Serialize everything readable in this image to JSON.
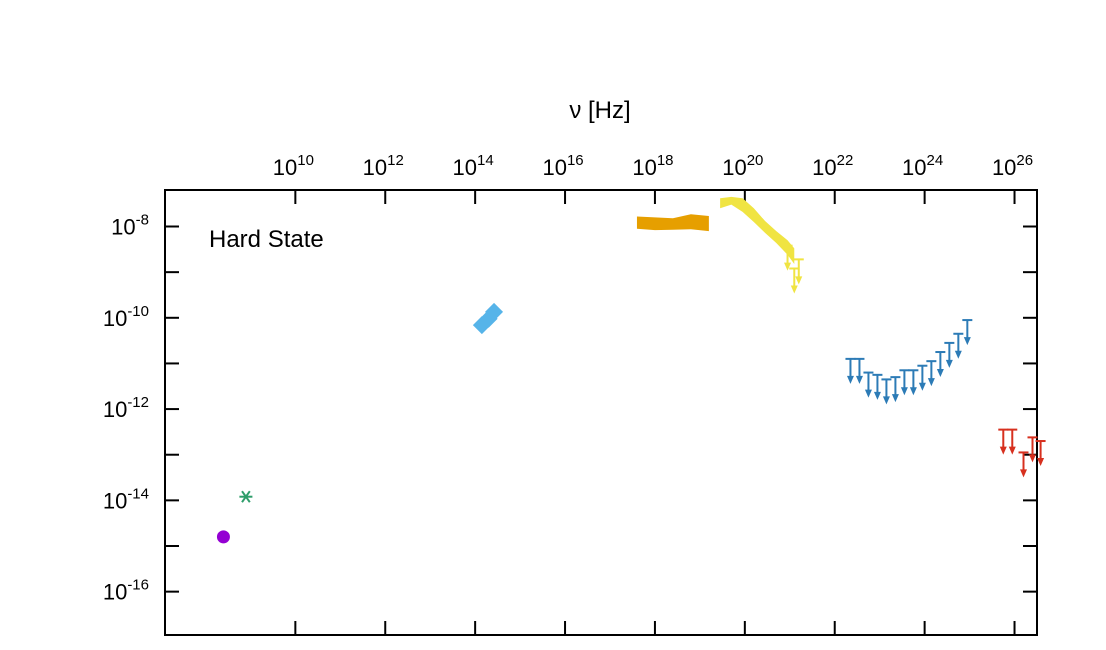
{
  "chart_data": {
    "type": "scatter",
    "title": "",
    "annotation": "Hard State",
    "xlabel": "ν [Hz]",
    "ylabel": "",
    "x_axis_position": "top",
    "x_scale": "log",
    "y_scale": "log",
    "xlim_log10": [
      7.1,
      26.5
    ],
    "ylim_log10": [
      -16.95,
      -7.2
    ],
    "x_ticks_log10": [
      10,
      12,
      14,
      16,
      18,
      20,
      22,
      24,
      26
    ],
    "y_ticks_log10": [
      -8,
      -10,
      -12,
      -14,
      -16
    ],
    "x_tick_labels": [
      {
        "base": "10",
        "exp": "10"
      },
      {
        "base": "10",
        "exp": "12"
      },
      {
        "base": "10",
        "exp": "14"
      },
      {
        "base": "10",
        "exp": "16"
      },
      {
        "base": "10",
        "exp": "18"
      },
      {
        "base": "10",
        "exp": "20"
      },
      {
        "base": "10",
        "exp": "22"
      },
      {
        "base": "10",
        "exp": "24"
      },
      {
        "base": "10",
        "exp": "26"
      }
    ],
    "y_tick_labels": [
      {
        "base": "10",
        "exp": "-8"
      },
      {
        "base": "10",
        "exp": "-10"
      },
      {
        "base": "10",
        "exp": "-12"
      },
      {
        "base": "10",
        "exp": "-14"
      },
      {
        "base": "10",
        "exp": "-16"
      }
    ],
    "grid": false,
    "series": [
      {
        "color": "#9400d3",
        "marker": "circle",
        "points": [
          {
            "log_x": 8.4,
            "log_y": -14.8
          }
        ]
      },
      {
        "color": "#2e9d6a",
        "marker": "asterisk",
        "points": [
          {
            "log_x": 8.9,
            "log_y": -13.92
          }
        ]
      },
      {
        "color": "#56b4e9",
        "marker": "diamond",
        "points": [
          {
            "log_x": 14.15,
            "log_y": -10.16
          },
          {
            "log_x": 14.3,
            "log_y": -10.02
          },
          {
            "log_x": 14.42,
            "log_y": -9.87
          }
        ]
      },
      {
        "color": "#e69f00",
        "marker": "band",
        "band_upper": [
          [
            17.6,
            -7.78
          ],
          [
            18.0,
            -7.8
          ],
          [
            18.4,
            -7.82
          ],
          [
            18.8,
            -7.73
          ],
          [
            19.2,
            -7.77
          ]
        ],
        "band_lower": [
          [
            17.6,
            -8.05
          ],
          [
            18.0,
            -8.08
          ],
          [
            18.4,
            -8.07
          ],
          [
            18.8,
            -8.06
          ],
          [
            19.2,
            -8.1
          ]
        ]
      },
      {
        "color": "#f0e442",
        "marker": "band",
        "band_upper": [
          [
            19.45,
            -7.38
          ],
          [
            19.7,
            -7.35
          ],
          [
            19.95,
            -7.38
          ],
          [
            20.2,
            -7.6
          ],
          [
            20.45,
            -7.88
          ],
          [
            20.7,
            -8.1
          ],
          [
            20.95,
            -8.3
          ],
          [
            21.1,
            -8.48
          ]
        ],
        "band_lower": [
          [
            21.1,
            -8.82
          ],
          [
            20.95,
            -8.62
          ],
          [
            20.7,
            -8.36
          ],
          [
            20.45,
            -8.14
          ],
          [
            20.2,
            -7.9
          ],
          [
            19.95,
            -7.68
          ],
          [
            19.7,
            -7.52
          ],
          [
            19.45,
            -7.6
          ]
        ],
        "upper_limits": [
          {
            "log_x": 20.95,
            "log_y": -8.42
          },
          {
            "log_x": 21.1,
            "log_y": -8.92
          },
          {
            "log_x": 21.2,
            "log_y": -8.72
          }
        ]
      },
      {
        "color": "#2c7bb6",
        "marker": "upper_limit",
        "points": [
          {
            "log_x": 22.35,
            "log_y": -10.9
          },
          {
            "log_x": 22.55,
            "log_y": -10.9
          },
          {
            "log_x": 22.75,
            "log_y": -11.2
          },
          {
            "log_x": 22.95,
            "log_y": -11.25
          },
          {
            "log_x": 23.15,
            "log_y": -11.35
          },
          {
            "log_x": 23.35,
            "log_y": -11.3
          },
          {
            "log_x": 23.55,
            "log_y": -11.15
          },
          {
            "log_x": 23.75,
            "log_y": -11.15
          },
          {
            "log_x": 23.95,
            "log_y": -11.05
          },
          {
            "log_x": 24.15,
            "log_y": -10.95
          },
          {
            "log_x": 24.35,
            "log_y": -10.75
          },
          {
            "log_x": 24.55,
            "log_y": -10.55
          },
          {
            "log_x": 24.75,
            "log_y": -10.35
          },
          {
            "log_x": 24.95,
            "log_y": -10.05
          }
        ]
      },
      {
        "color": "#d7301f",
        "marker": "upper_limit",
        "points": [
          {
            "log_x": 25.75,
            "log_y": -12.45
          },
          {
            "log_x": 25.95,
            "log_y": -12.45
          },
          {
            "log_x": 26.2,
            "log_y": -12.95
          },
          {
            "log_x": 26.4,
            "log_y": -12.62
          },
          {
            "log_x": 26.58,
            "log_y": -12.7
          }
        ]
      }
    ]
  }
}
